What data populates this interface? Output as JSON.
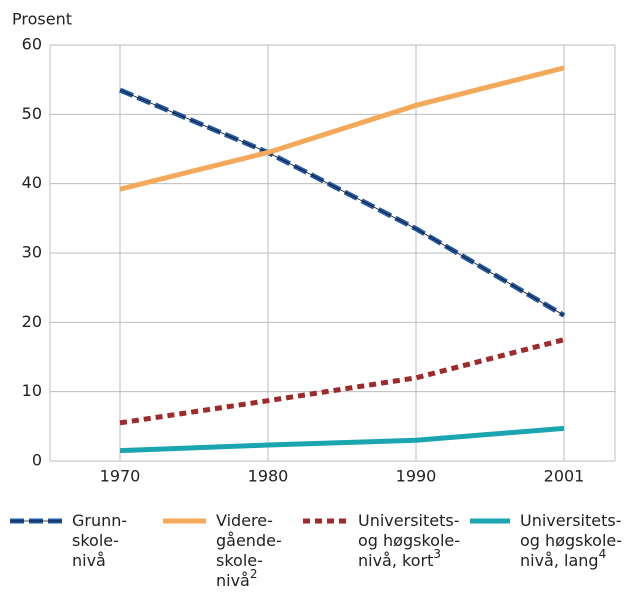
{
  "chart_data": {
    "type": "line",
    "y_label": "Prosent",
    "categories": [
      "1970",
      "1980",
      "1990",
      "2001"
    ],
    "series": [
      {
        "name": "Grunn-\nskole-\nnivå",
        "color": "#1f57a4",
        "style": "dashed",
        "values": [
          53.5,
          44.5,
          33.5,
          21
        ]
      },
      {
        "name": "Videre-\ngående-\nskole-\nnivå",
        "footnote": "2",
        "color": "#f4a95a",
        "style": "solid",
        "values": [
          39.2,
          44.5,
          51.3,
          56.7
        ]
      },
      {
        "name": "Universitets-\nog høgskole-\nnivå, kort",
        "footnote": "3",
        "color": "#9e2a2b",
        "style": "dotted",
        "values": [
          5.5,
          8.7,
          12,
          17.5
        ]
      },
      {
        "name": "Universitets-\nog høgskole-\nnivå, lang",
        "footnote": "4",
        "color": "#1aa5b0",
        "style": "solid",
        "values": [
          1.5,
          2.3,
          3,
          4.7
        ]
      }
    ],
    "ylim": [
      0,
      60
    ],
    "yticks": [
      0,
      10,
      20,
      30,
      40,
      50,
      60
    ],
    "grid": true
  }
}
